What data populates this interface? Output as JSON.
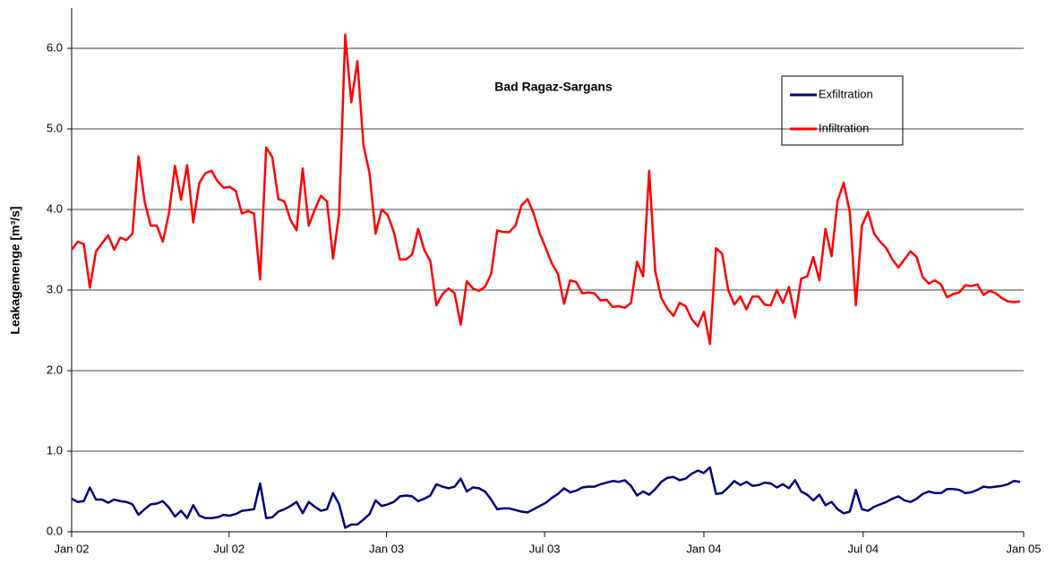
{
  "chart_data": {
    "type": "line",
    "title": "Bad Ragaz-Sargans",
    "y_label": "Leakagemenge [m³/s]",
    "x": [
      0,
      1,
      2,
      3,
      4,
      5,
      6,
      7,
      8,
      9,
      10,
      11,
      12,
      13,
      14,
      15,
      16,
      17,
      18,
      19,
      20,
      21,
      22,
      23,
      24,
      25,
      26,
      27,
      28,
      29,
      30,
      31,
      32,
      33,
      34,
      35,
      36,
      37,
      38,
      39,
      40,
      41,
      42,
      43,
      44,
      45,
      46,
      47,
      48,
      49,
      50,
      51,
      52,
      53,
      54,
      55,
      56,
      57,
      58,
      59,
      60,
      61,
      62,
      63,
      64,
      65,
      66,
      67,
      68,
      69,
      70,
      71,
      72,
      73,
      74,
      75,
      76,
      77,
      78,
      79,
      80,
      81,
      82,
      83,
      84,
      85,
      86,
      87,
      88,
      89,
      90,
      91,
      92,
      93,
      94,
      95,
      96,
      97,
      98,
      99,
      100,
      101,
      102,
      103,
      104,
      105,
      106,
      107,
      108,
      109,
      110,
      111,
      112,
      113,
      114,
      115,
      116,
      117,
      118,
      119,
      120,
      121,
      122,
      123,
      124,
      125,
      126,
      127,
      128,
      129,
      130,
      131,
      132,
      133,
      134,
      135,
      136,
      137,
      138,
      139,
      140,
      141,
      142,
      143,
      144,
      145,
      146,
      147,
      148,
      149,
      150,
      151,
      152,
      153,
      154,
      155,
      156
    ],
    "series": [
      {
        "name": "Exfiltration",
        "color": "#000080",
        "values": [
          0.41,
          0.37,
          0.38,
          0.55,
          0.4,
          0.4,
          0.36,
          0.4,
          0.38,
          0.37,
          0.34,
          0.21,
          0.28,
          0.34,
          0.35,
          0.38,
          0.3,
          0.19,
          0.26,
          0.17,
          0.33,
          0.2,
          0.17,
          0.17,
          0.18,
          0.21,
          0.2,
          0.22,
          0.26,
          0.27,
          0.28,
          0.6,
          0.17,
          0.18,
          0.25,
          0.28,
          0.32,
          0.37,
          0.23,
          0.37,
          0.31,
          0.26,
          0.28,
          0.48,
          0.34,
          0.05,
          0.09,
          0.09,
          0.15,
          0.22,
          0.39,
          0.32,
          0.34,
          0.37,
          0.44,
          0.45,
          0.44,
          0.38,
          0.41,
          0.45,
          0.59,
          0.56,
          0.54,
          0.56,
          0.66,
          0.5,
          0.55,
          0.54,
          0.5,
          0.4,
          0.28,
          0.29,
          0.29,
          0.27,
          0.25,
          0.24,
          0.28,
          0.32,
          0.36,
          0.42,
          0.47,
          0.54,
          0.49,
          0.51,
          0.55,
          0.56,
          0.56,
          0.59,
          0.61,
          0.63,
          0.62,
          0.64,
          0.57,
          0.45,
          0.5,
          0.46,
          0.53,
          0.62,
          0.67,
          0.68,
          0.64,
          0.66,
          0.72,
          0.76,
          0.73,
          0.8,
          0.47,
          0.48,
          0.55,
          0.63,
          0.58,
          0.62,
          0.57,
          0.58,
          0.61,
          0.6,
          0.55,
          0.59,
          0.54,
          0.64,
          0.5,
          0.46,
          0.39,
          0.46,
          0.33,
          0.37,
          0.28,
          0.23,
          0.25,
          0.52,
          0.28,
          0.26,
          0.31,
          0.34,
          0.37,
          0.41,
          0.44,
          0.39,
          0.37,
          0.41,
          0.47,
          0.5,
          0.48,
          0.48,
          0.53,
          0.53,
          0.52,
          0.48,
          0.49,
          0.52,
          0.56,
          0.55,
          0.56,
          0.57,
          0.59,
          0.63,
          0.62
        ]
      },
      {
        "name": "Infiltration",
        "color": "#ff0000",
        "values": [
          3.5,
          3.6,
          3.57,
          3.03,
          3.48,
          3.58,
          3.68,
          3.5,
          3.65,
          3.62,
          3.7,
          4.66,
          4.1,
          3.8,
          3.8,
          3.6,
          3.95,
          4.54,
          4.12,
          4.55,
          3.84,
          4.33,
          4.45,
          4.48,
          4.35,
          4.27,
          4.28,
          4.23,
          3.95,
          3.98,
          3.95,
          3.13,
          4.77,
          4.65,
          4.13,
          4.1,
          3.87,
          3.74,
          4.51,
          3.8,
          4.0,
          4.17,
          4.1,
          3.39,
          3.95,
          6.17,
          5.33,
          5.84,
          4.8,
          4.45,
          3.7,
          4.0,
          3.93,
          3.72,
          3.38,
          3.38,
          3.44,
          3.76,
          3.5,
          3.36,
          2.81,
          2.95,
          3.02,
          2.96,
          2.57,
          3.11,
          3.02,
          2.99,
          3.04,
          3.2,
          3.74,
          3.72,
          3.72,
          3.8,
          4.05,
          4.13,
          3.95,
          3.7,
          3.52,
          3.33,
          3.2,
          2.83,
          3.12,
          3.1,
          2.96,
          2.97,
          2.96,
          2.87,
          2.88,
          2.79,
          2.8,
          2.78,
          2.84,
          3.35,
          3.17,
          4.48,
          3.23,
          2.9,
          2.77,
          2.68,
          2.84,
          2.8,
          2.64,
          2.55,
          2.73,
          2.33,
          3.52,
          3.45,
          3.0,
          2.82,
          2.92,
          2.76,
          2.92,
          2.92,
          2.82,
          2.81,
          3.0,
          2.84,
          3.04,
          2.66,
          3.14,
          3.17,
          3.41,
          3.12,
          3.76,
          3.42,
          4.11,
          4.33,
          3.97,
          2.81,
          3.8,
          3.97,
          3.7,
          3.6,
          3.52,
          3.38,
          3.28,
          3.38,
          3.48,
          3.41,
          3.16,
          3.08,
          3.12,
          3.07,
          2.91,
          2.95,
          2.97,
          3.06,
          3.05,
          3.07,
          2.94,
          2.99,
          2.96,
          2.9,
          2.86,
          2.85,
          2.86
        ]
      }
    ],
    "xlim": [
      0,
      156.6
    ],
    "xticks": [
      {
        "value": 0,
        "label": "Jan 02"
      },
      {
        "value": 25.9,
        "label": "Jul 02"
      },
      {
        "value": 51.8,
        "label": "Jan 03"
      },
      {
        "value": 77.8,
        "label": "Jul 03"
      },
      {
        "value": 104.0,
        "label": "Jan 04"
      },
      {
        "value": 130.2,
        "label": "Jul 04"
      },
      {
        "value": 156.6,
        "label": "Jan 05"
      }
    ],
    "ylim": [
      0,
      6.5
    ],
    "yticks": [
      {
        "value": 0,
        "label": "0.0"
      },
      {
        "value": 1,
        "label": "1.0"
      },
      {
        "value": 2,
        "label": "2.0"
      },
      {
        "value": 3,
        "label": "3.0"
      },
      {
        "value": 4,
        "label": "4.0"
      },
      {
        "value": 5,
        "label": "5.0"
      },
      {
        "value": 6,
        "label": "6.0"
      }
    ],
    "grid": true
  }
}
